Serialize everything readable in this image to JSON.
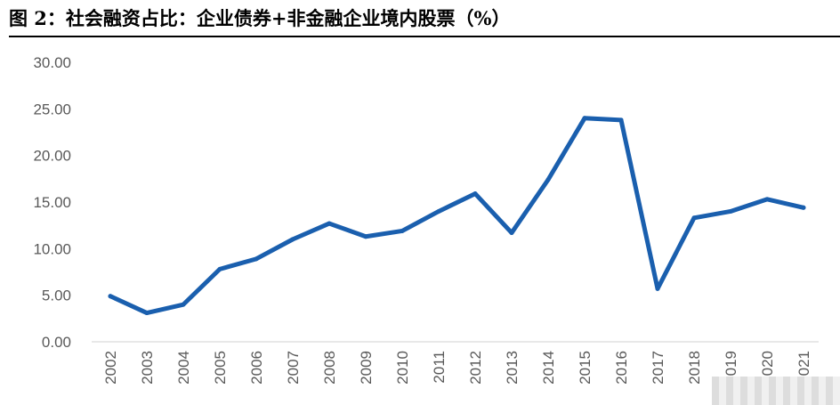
{
  "title": "图 2：社会融资占比：企业债券+非金融企业境内股票（%）",
  "colors": {
    "line": "#1a5fae",
    "axis": "#d9d9d9",
    "text": "#595959"
  },
  "chart_data": {
    "type": "line",
    "title": "图 2：社会融资占比：企业债券+非金融企业境内股票（%）",
    "categories": [
      "2002",
      "2003",
      "2004",
      "2005",
      "2006",
      "2007",
      "2008",
      "2009",
      "2010",
      "2011",
      "2012",
      "2013",
      "2014",
      "2015",
      "2016",
      "2017",
      "2018",
      "2019",
      "2020",
      "2021"
    ],
    "x_tick_labels": [
      "2002",
      "2003",
      "2004",
      "2005",
      "2006",
      "2007",
      "2008",
      "2009",
      "2010",
      "2011",
      "2012",
      "2013",
      "2014",
      "2015",
      "2016",
      "2017",
      "2018",
      "019",
      "020",
      "021"
    ],
    "series": [
      {
        "values": [
          4.9,
          3.1,
          4.0,
          7.8,
          8.9,
          11.0,
          12.7,
          11.3,
          11.9,
          14.0,
          15.9,
          11.7,
          17.4,
          24.0,
          23.8,
          5.7,
          13.3,
          14.0,
          15.3,
          14.4
        ]
      }
    ],
    "ylim": [
      0,
      30
    ],
    "y_ticks": [
      "0.00",
      "5.00",
      "10.00",
      "15.00",
      "20.00",
      "25.00",
      "30.00"
    ],
    "grid": false,
    "legend": "none",
    "xlabel": "",
    "ylabel": ""
  }
}
